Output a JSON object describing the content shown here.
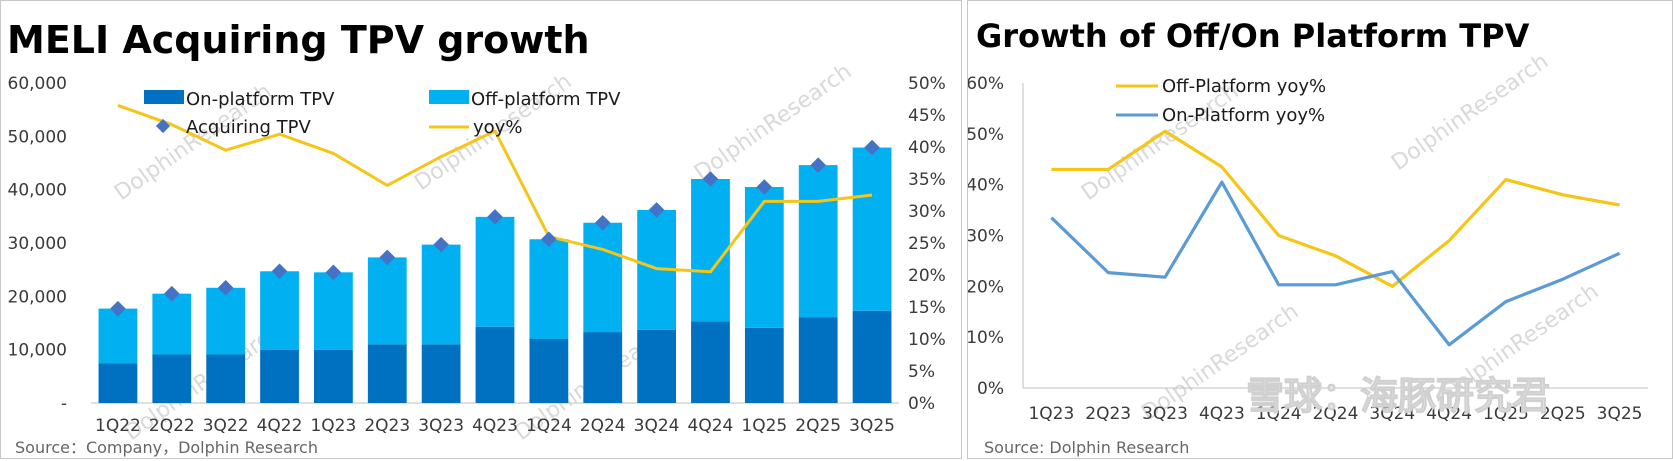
{
  "chart_data": [
    {
      "type": "bar",
      "title": "MELI Acquiring TPV growth",
      "source": "Source：Company，Dolphin Research",
      "categories": [
        "1Q22",
        "2Q22",
        "3Q22",
        "4Q22",
        "1Q23",
        "2Q23",
        "3Q23",
        "4Q23",
        "1Q24",
        "2Q24",
        "3Q24",
        "4Q24",
        "1Q25",
        "2Q25",
        "3Q25"
      ],
      "series": [
        {
          "name": "On-platform TPV",
          "type": "bar",
          "color": "#0070c0",
          "stack": "tpv",
          "values": [
            7400,
            9100,
            9100,
            10000,
            10000,
            11000,
            11000,
            14300,
            12000,
            13300,
            13700,
            15300,
            14100,
            16100,
            17300
          ]
        },
        {
          "name": "Off-platform TPV",
          "type": "bar",
          "color": "#00b0f0",
          "stack": "tpv",
          "values": [
            10300,
            11400,
            12500,
            14700,
            14500,
            16300,
            18700,
            20600,
            18700,
            20500,
            22500,
            26700,
            26400,
            28500,
            30600
          ]
        },
        {
          "name": "Acquiring TPV",
          "type": "scatter",
          "color": "#4472c4",
          "values": [
            17700,
            20500,
            21600,
            24700,
            24500,
            27300,
            29700,
            34900,
            30700,
            33800,
            36200,
            42000,
            40500,
            44600,
            47900
          ]
        },
        {
          "name": "yoy%",
          "type": "line",
          "axis": "right",
          "color": "#f5c518",
          "values": [
            46.5,
            43.5,
            39.5,
            42.0,
            39.0,
            34.0,
            38.5,
            42.5,
            26.0,
            24.0,
            21.0,
            20.5,
            31.5,
            31.5,
            32.5
          ]
        }
      ],
      "y_left": {
        "min": 0,
        "max": 60000,
        "ticks": [
          "-",
          "10,000",
          "20,000",
          "30,000",
          "40,000",
          "50,000",
          "60,000"
        ]
      },
      "y_right": {
        "min": 0,
        "max": 50,
        "ticks": [
          "0%",
          "5%",
          "10%",
          "15%",
          "20%",
          "25%",
          "30%",
          "35%",
          "40%",
          "45%",
          "50%"
        ]
      },
      "legend": "top",
      "watermark": "DolphinResearch",
      "grid": false
    },
    {
      "type": "line",
      "title": "Growth of Off/On Platform TPV",
      "source": "Source: Dolphin Research",
      "categories": [
        "1Q23",
        "2Q23",
        "3Q23",
        "4Q23",
        "1Q24",
        "2Q24",
        "3Q24",
        "4Q24",
        "1Q25",
        "2Q25",
        "3Q25"
      ],
      "series": [
        {
          "name": "Off-Platform yoy%",
          "color": "#f5c518",
          "values": [
            43.0,
            43.0,
            50.5,
            43.5,
            30.0,
            26.0,
            20.0,
            29.0,
            41.0,
            38.0,
            36.0
          ]
        },
        {
          "name": "On-Platform yoy%",
          "color": "#5b9bd5",
          "values": [
            33.5,
            22.7,
            21.8,
            40.5,
            20.3,
            20.3,
            22.9,
            8.5,
            17.0,
            21.4,
            26.5
          ]
        }
      ],
      "y": {
        "min": 0,
        "max": 60,
        "ticks": [
          "0%",
          "10%",
          "20%",
          "30%",
          "40%",
          "50%",
          "60%"
        ]
      },
      "legend": "top-left",
      "watermark": "DolphinResearch",
      "footer_watermark": "雪球：海豚研究君",
      "grid": false
    }
  ]
}
